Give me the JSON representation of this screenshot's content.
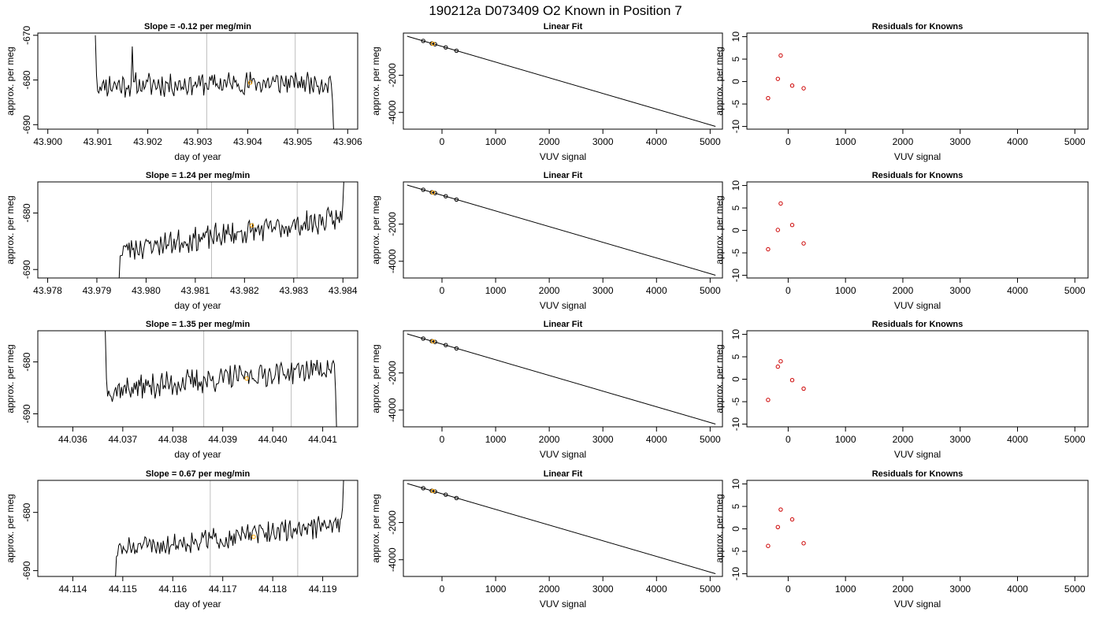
{
  "figure_title": "190212a     D073409   O2 Known in Position  7",
  "colors": {
    "trace": "#000000",
    "vline": "#bebebe",
    "marker_orange": "#ffa500",
    "residual_red": "#cc0000"
  },
  "chart_data": [
    {
      "type": "line",
      "title": "Slope =  -0.12  per meg/min",
      "xlabel": "day of year",
      "ylabel": "approx. per meg",
      "xlim": [
        43.8998,
        43.9062
      ],
      "ylim": [
        -691,
        -669.5
      ],
      "xticks": [
        "43.900",
        "43.901",
        "43.902",
        "43.903",
        "43.904",
        "43.905",
        "43.906"
      ],
      "yticks": [
        "-670",
        "-680",
        "-690"
      ],
      "vlines": [
        43.90318,
        43.90495
      ],
      "start": 43.90095,
      "end": 43.90572,
      "start_y": -670,
      "base": -681.2,
      "drift": 0.7,
      "noise": 2.2,
      "seed": 11,
      "spikes": [
        [
          43.90168,
          -672.5
        ]
      ],
      "tail_y": -692,
      "marker": {
        "x": 43.90405,
        "y": -680.6
      }
    },
    {
      "type": "line",
      "title": "Slope =  1.24  per meg/min",
      "xlabel": "day of year",
      "ylabel": "approx. per meg",
      "xlim": [
        43.9778,
        43.9843
      ],
      "ylim": [
        -691.5,
        -674.5
      ],
      "xticks": [
        "43.978",
        "43.979",
        "43.980",
        "43.981",
        "43.982",
        "43.983",
        "43.984"
      ],
      "yticks": [
        "-680",
        "-690"
      ],
      "vlines": [
        43.98133,
        43.98307
      ],
      "start": 43.97945,
      "end": 43.98402,
      "start_y": -692,
      "base": -686.5,
      "drift": 5.5,
      "noise": 1.8,
      "seed": 23,
      "spikes": [],
      "tail_y": -674,
      "marker": {
        "x": 43.98215,
        "y": -682.2
      }
    },
    {
      "type": "line",
      "title": "Slope =  1.35  per meg/min",
      "xlabel": "day of year",
      "ylabel": "approx. per meg",
      "xlim": [
        44.0353,
        44.0417
      ],
      "ylim": [
        -692.5,
        -674
      ],
      "xticks": [
        "44.036",
        "44.037",
        "44.038",
        "44.039",
        "44.040",
        "44.041"
      ],
      "yticks": [
        "-680",
        "-690"
      ],
      "vlines": [
        44.03862,
        44.04037
      ],
      "start": 44.03665,
      "end": 44.04128,
      "start_y": -674,
      "base": -685.5,
      "drift": 4.5,
      "noise": 2.0,
      "seed": 37,
      "spikes": [],
      "tail_y": -694,
      "marker": {
        "x": 44.03948,
        "y": -683.2
      }
    },
    {
      "type": "line",
      "title": "Slope =  0.67  per meg/min",
      "xlabel": "day of year",
      "ylabel": "approx. per meg",
      "xlim": [
        44.1133,
        44.1197
      ],
      "ylim": [
        -691,
        -674.5
      ],
      "xticks": [
        "44.114",
        "44.115",
        "44.116",
        "44.117",
        "44.118",
        "44.119"
      ],
      "yticks": [
        "-680",
        "-690"
      ],
      "vlines": [
        44.11675,
        44.1185
      ],
      "start": 44.11485,
      "end": 44.11942,
      "start_y": -692,
      "base": -686.5,
      "drift": 4.5,
      "noise": 1.6,
      "seed": 51,
      "spikes": [],
      "tail_y": -674,
      "marker": {
        "x": 44.11762,
        "y": -684.2
      }
    },
    {
      "type": "scatter",
      "title": "Linear Fit",
      "xlabel": "VUV signal",
      "ylabel": "approx. per meg",
      "xlim": [
        -720,
        5230
      ],
      "ylim": [
        -4900,
        270
      ],
      "xticks": [
        0,
        1000,
        2000,
        3000,
        4000,
        5000
      ],
      "yticks": [
        -2000,
        -4000
      ],
      "line": [
        [
          -650,
          100
        ],
        [
          5100,
          -4750
        ]
      ],
      "points": [
        [
          -350,
          -150
        ],
        [
          -190,
          -290
        ],
        [
          -130,
          -330
        ],
        [
          70,
          -500
        ],
        [
          270,
          -680
        ]
      ],
      "orange": [
        [
          -170,
          -300
        ]
      ]
    },
    {
      "type": "scatter",
      "title": "Linear Fit",
      "xlabel": "VUV signal",
      "ylabel": "approx. per meg",
      "xlim": [
        -720,
        5230
      ],
      "ylim": [
        -4900,
        270
      ],
      "xticks": [
        0,
        1000,
        2000,
        3000,
        4000,
        5000
      ],
      "yticks": [
        -2000,
        -4000
      ],
      "line": [
        [
          -650,
          100
        ],
        [
          5100,
          -4750
        ]
      ],
      "points": [
        [
          -350,
          -150
        ],
        [
          -190,
          -290
        ],
        [
          -130,
          -330
        ],
        [
          70,
          -500
        ],
        [
          270,
          -680
        ]
      ],
      "orange": [
        [
          -170,
          -300
        ]
      ]
    },
    {
      "type": "scatter",
      "title": "Linear Fit",
      "xlabel": "VUV signal",
      "ylabel": "approx. per meg",
      "xlim": [
        -720,
        5230
      ],
      "ylim": [
        -4900,
        270
      ],
      "xticks": [
        0,
        1000,
        2000,
        3000,
        4000,
        5000
      ],
      "yticks": [
        -2000,
        -4000
      ],
      "line": [
        [
          -650,
          100
        ],
        [
          5100,
          -4750
        ]
      ],
      "points": [
        [
          -350,
          -150
        ],
        [
          -190,
          -290
        ],
        [
          -130,
          -330
        ],
        [
          70,
          -500
        ],
        [
          270,
          -680
        ]
      ],
      "orange": [
        [
          -170,
          -300
        ]
      ]
    },
    {
      "type": "scatter",
      "title": "Linear Fit",
      "xlabel": "VUV signal",
      "ylabel": "approx. per meg",
      "xlim": [
        -720,
        5230
      ],
      "ylim": [
        -4900,
        270
      ],
      "xticks": [
        0,
        1000,
        2000,
        3000,
        4000,
        5000
      ],
      "yticks": [
        -2000,
        -4000
      ],
      "line": [
        [
          -650,
          100
        ],
        [
          5100,
          -4750
        ]
      ],
      "points": [
        [
          -350,
          -150
        ],
        [
          -190,
          -290
        ],
        [
          -130,
          -330
        ],
        [
          70,
          -500
        ],
        [
          270,
          -680
        ]
      ],
      "orange": [
        [
          -170,
          -300
        ]
      ]
    },
    {
      "type": "scatter",
      "title": "Residuals for Knowns",
      "xlabel": "VUV signal",
      "ylabel": "approx. per meg",
      "xlim": [
        -720,
        5230
      ],
      "ylim": [
        -10.6,
        10.8
      ],
      "xticks": [
        0,
        1000,
        2000,
        3000,
        4000,
        5000
      ],
      "yticks": [
        -10,
        -5,
        0,
        5,
        10
      ],
      "points": [
        [
          -350,
          -3.7
        ],
        [
          -180,
          0.6
        ],
        [
          -130,
          5.8
        ],
        [
          70,
          -0.9
        ],
        [
          270,
          -1.5
        ]
      ]
    },
    {
      "type": "scatter",
      "title": "Residuals for Knowns",
      "xlabel": "VUV signal",
      "ylabel": "approx. per meg",
      "xlim": [
        -720,
        5230
      ],
      "ylim": [
        -10.6,
        10.8
      ],
      "xticks": [
        0,
        1000,
        2000,
        3000,
        4000,
        5000
      ],
      "yticks": [
        -10,
        -5,
        0,
        5,
        10
      ],
      "points": [
        [
          -350,
          -4.2
        ],
        [
          -180,
          0.1
        ],
        [
          -130,
          6.0
        ],
        [
          70,
          1.2
        ],
        [
          270,
          -2.9
        ]
      ]
    },
    {
      "type": "scatter",
      "title": "Residuals for Knowns",
      "xlabel": "VUV signal",
      "ylabel": "approx. per meg",
      "xlim": [
        -720,
        5230
      ],
      "ylim": [
        -10.6,
        10.8
      ],
      "xticks": [
        0,
        1000,
        2000,
        3000,
        4000,
        5000
      ],
      "yticks": [
        -10,
        -5,
        0,
        5,
        10
      ],
      "points": [
        [
          -350,
          -4.6
        ],
        [
          -180,
          2.8
        ],
        [
          -130,
          4.0
        ],
        [
          70,
          -0.2
        ],
        [
          270,
          -2.1
        ]
      ]
    },
    {
      "type": "scatter",
      "title": "Residuals for Knowns",
      "xlabel": "VUV signal",
      "ylabel": "approx. per meg",
      "xlim": [
        -720,
        5230
      ],
      "ylim": [
        -10.6,
        10.8
      ],
      "xticks": [
        0,
        1000,
        2000,
        3000,
        4000,
        5000
      ],
      "yticks": [
        -10,
        -5,
        0,
        5,
        10
      ],
      "points": [
        [
          -350,
          -3.8
        ],
        [
          -180,
          0.4
        ],
        [
          -130,
          4.3
        ],
        [
          70,
          2.1
        ],
        [
          270,
          -3.2
        ]
      ]
    }
  ]
}
